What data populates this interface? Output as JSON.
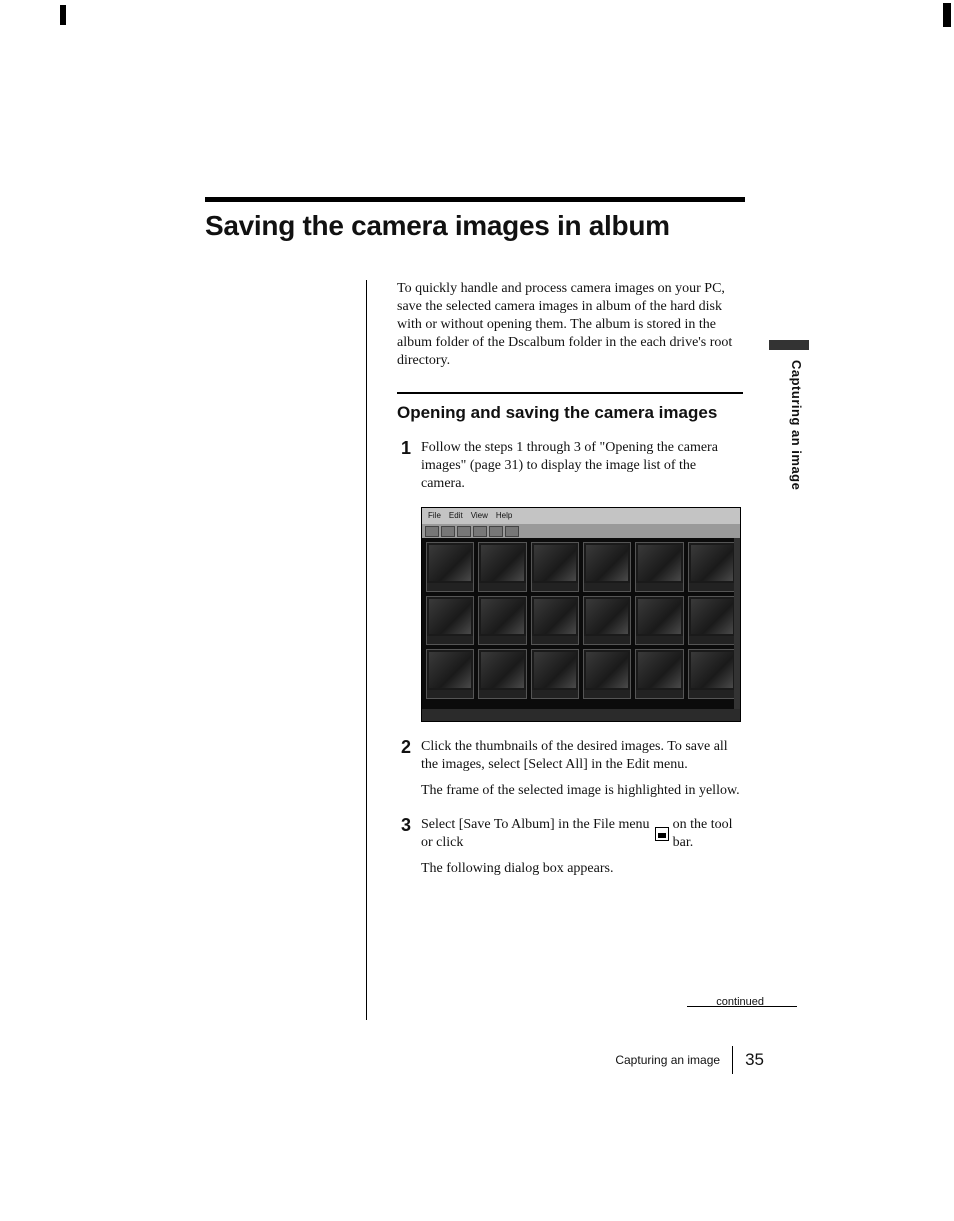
{
  "page": {
    "title": "Saving the camera images in album",
    "intro": "To quickly handle and process camera images on your PC, save the selected camera images in album of the hard disk with or without opening them. The album is stored in the album folder of the Dscalbum folder in the each drive's root directory.",
    "subheading": "Opening and saving the camera images",
    "side_tab": "Capturing an image",
    "continued_label": "continued",
    "footer_label": "Capturing an image",
    "page_number": "35",
    "colors": {
      "text": "#111111",
      "rule": "#000000",
      "background": "#ffffff",
      "screenshot_bg": "#0b0b0b",
      "screenshot_menubar": "#c4c4c4",
      "side_mark": "#333333"
    },
    "fonts": {
      "title_family": "Arial",
      "title_weight": 800,
      "title_size_pt": 21,
      "body_family": "Times New Roman",
      "body_size_pt": 10.5,
      "subhead_size_pt": 13,
      "stepnum_size_pt": 14,
      "footer_num_size_pt": 13
    }
  },
  "steps": [
    {
      "num": "1",
      "text": "Follow the steps 1 through 3 of \"Opening the camera images\" (page 31) to display the image list of the camera."
    },
    {
      "num": "2",
      "text": "Click the thumbnails of the desired images. To save all the images, select [Select All] in the Edit menu.",
      "result": "The frame of the selected image is highlighted in yellow."
    },
    {
      "num": "3",
      "text_pre": "Select [Save To Album] in the File menu or click ",
      "icon_name": "save-to-album-icon",
      "text_post": " on the tool bar.",
      "result": "The following dialog box appears."
    }
  ],
  "screenshot": {
    "type": "screenshot-thumbnail-grid",
    "rows": 3,
    "cols": 6,
    "background_color": "#0b0b0b",
    "menubar_color": "#c4c4c4",
    "toolbar_color": "#9a9a9a",
    "thumb_border": "#555555",
    "thumb_fill": "#1a1a1a"
  }
}
